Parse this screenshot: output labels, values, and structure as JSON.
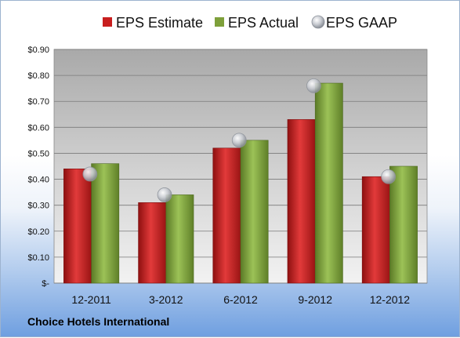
{
  "company": "Choice Hotels International",
  "colors": {
    "estimate": "#c81e1e",
    "actual": "#7ea03a",
    "gaap": "#b8bcc4"
  },
  "chart_data": {
    "type": "bar",
    "categories": [
      "12-2011",
      "3-2012",
      "6-2012",
      "9-2012",
      "12-2012"
    ],
    "series": [
      {
        "name": "EPS Estimate",
        "kind": "bar",
        "values": [
          0.44,
          0.31,
          0.52,
          0.63,
          0.41
        ]
      },
      {
        "name": "EPS Actual",
        "kind": "bar",
        "values": [
          0.46,
          0.34,
          0.55,
          0.77,
          0.45
        ]
      },
      {
        "name": "EPS GAAP",
        "kind": "marker",
        "values": [
          0.42,
          0.34,
          0.55,
          0.76,
          0.41
        ]
      }
    ],
    "ylim": [
      0,
      0.9
    ],
    "yticks": [
      0,
      0.1,
      0.2,
      0.3,
      0.4,
      0.5,
      0.6,
      0.7,
      0.8,
      0.9
    ],
    "ytick_labels": [
      "$-",
      "$0.10",
      "$0.20",
      "$0.30",
      "$0.40",
      "$0.50",
      "$0.60",
      "$0.70",
      "$0.80",
      "$0.90"
    ],
    "grid": true,
    "legend_position": "top"
  }
}
